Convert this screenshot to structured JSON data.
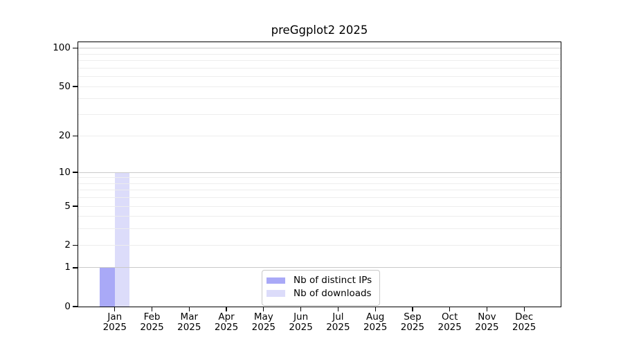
{
  "chart_data": {
    "type": "bar",
    "title": "preGgplot2 2025",
    "months": [
      "Jan",
      "Feb",
      "Mar",
      "Apr",
      "May",
      "Jun",
      "Jul",
      "Aug",
      "Sep",
      "Oct",
      "Nov",
      "Dec"
    ],
    "year": "2025",
    "series": [
      {
        "name": "Nb of distinct IPs",
        "color": "#a9a9f7",
        "values": [
          1,
          0,
          0,
          0,
          0,
          0,
          0,
          0,
          0,
          0,
          0,
          0
        ]
      },
      {
        "name": "Nb of downloads",
        "color": "#dcdcfa",
        "values": [
          10,
          0,
          0,
          0,
          0,
          0,
          0,
          0,
          0,
          0,
          0,
          0
        ]
      }
    ],
    "yscale": "log1p",
    "ylim": [
      0,
      113
    ],
    "ytick_values": [
      0,
      1,
      2,
      5,
      10,
      20,
      50,
      100
    ],
    "ytick_labels": [
      "0",
      "1",
      "2",
      "5",
      "10",
      "20",
      "50",
      "100"
    ],
    "grid": {
      "major_values": [
        1,
        10,
        100
      ],
      "minor_values": [
        2,
        3,
        4,
        5,
        6,
        7,
        8,
        9,
        20,
        30,
        40,
        50,
        60,
        70,
        80,
        90
      ],
      "major_color": "#c9c9c9",
      "minor_color": "#ededed"
    },
    "legend": {
      "position": "lower center"
    },
    "axis_color": "#000000",
    "background": "#ffffff"
  }
}
